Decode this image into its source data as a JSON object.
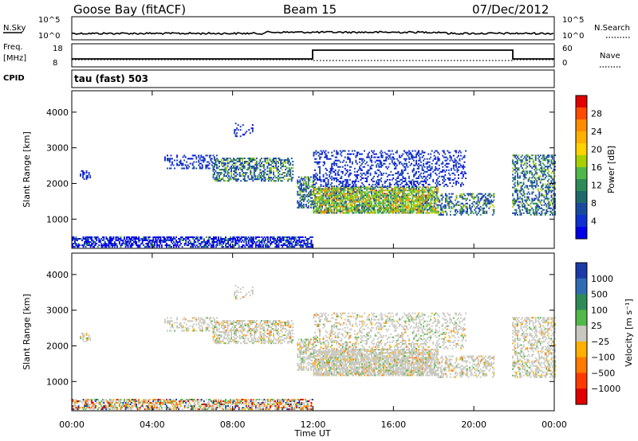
{
  "header": {
    "station": "Goose Bay (fitACF)",
    "beam": "Beam 15",
    "date": "07/Dec/2012"
  },
  "top_panels": {
    "nsky_label": "N.Sky",
    "nsearch_label": "N.Search",
    "nsky_ticks": [
      "10^5",
      "10^0"
    ],
    "nsearch_ticks": [
      "10^5",
      "10^0"
    ],
    "freq_label": "Freq.",
    "freq_unit": "[MHz]",
    "freq_ticks": [
      "18",
      "8"
    ],
    "nave_label": "Nave",
    "nave_ticks": [
      "60",
      "0"
    ],
    "cpid_label": "CPID",
    "cpid_value": "tau (fast) 503"
  },
  "chart_data": [
    {
      "type": "heatmap",
      "name": "power",
      "ylabel": "Slant Range [km]",
      "ylim": [
        180,
        4600
      ],
      "yticks": [
        "4000",
        "3000",
        "2000",
        "1000"
      ],
      "xlabel": "Time UT",
      "xlim": [
        0,
        24
      ],
      "xticks": [
        "00:00",
        "04:00",
        "08:00",
        "12:00",
        "16:00",
        "20:00",
        "00:00"
      ],
      "colorbar": {
        "label": "Power [dB]",
        "ticks": [
          "28",
          "24",
          "20",
          "16",
          "12",
          "8",
          "4"
        ],
        "colors": [
          "#e00000",
          "#ff4a00",
          "#ff8c00",
          "#ffb000",
          "#ffd200",
          "#a8d000",
          "#50b848",
          "#2e8b57",
          "#1e6a6a",
          "#1a4aa0",
          "#1030d0",
          "#0000e8"
        ]
      }
    },
    {
      "type": "heatmap",
      "name": "velocity",
      "ylabel": "Slant Range [km]",
      "ylim": [
        180,
        4600
      ],
      "yticks": [
        "4000",
        "3000",
        "2000",
        "1000"
      ],
      "xlabel": "Time UT",
      "xlim": [
        0,
        24
      ],
      "xticks": [
        "00:00",
        "04:00",
        "08:00",
        "12:00",
        "16:00",
        "20:00",
        "00:00"
      ],
      "colorbar": {
        "label": "Velocity [m s⁻¹]",
        "ticks": [
          "1000",
          "500",
          "100",
          "25",
          "−25",
          "−100",
          "−500",
          "−1000"
        ],
        "colors": [
          "#1a3aa8",
          "#2f6cb4",
          "#2e8b57",
          "#53b84a",
          "#c8c8c0",
          "#ffb000",
          "#ff7a00",
          "#ff3a00",
          "#e00000"
        ]
      }
    }
  ],
  "colors": {
    "axes": "#000000",
    "ground_gray": "#c8c8c0"
  }
}
